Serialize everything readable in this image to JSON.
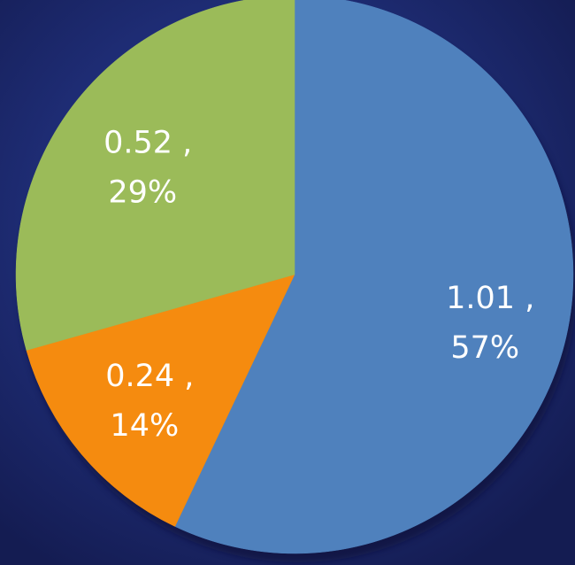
{
  "chart_data": {
    "type": "pie",
    "title": "",
    "start_angle_deg": 0,
    "direction": "clockwise",
    "slices": [
      {
        "value": 1.01,
        "percent": "57%",
        "label_value": "1.01 ,",
        "label_percent": "57%",
        "color": "#4f81bd"
      },
      {
        "value": 0.24,
        "percent": "14%",
        "label_value": "0.24 ,",
        "label_percent": "14%",
        "color": "#f58b0f"
      },
      {
        "value": 0.52,
        "percent": "29%",
        "label_value": "0.52 ,",
        "label_percent": "29%",
        "color": "#9bbb59"
      }
    ],
    "legend": "none",
    "background_color": "#1d2a78"
  }
}
